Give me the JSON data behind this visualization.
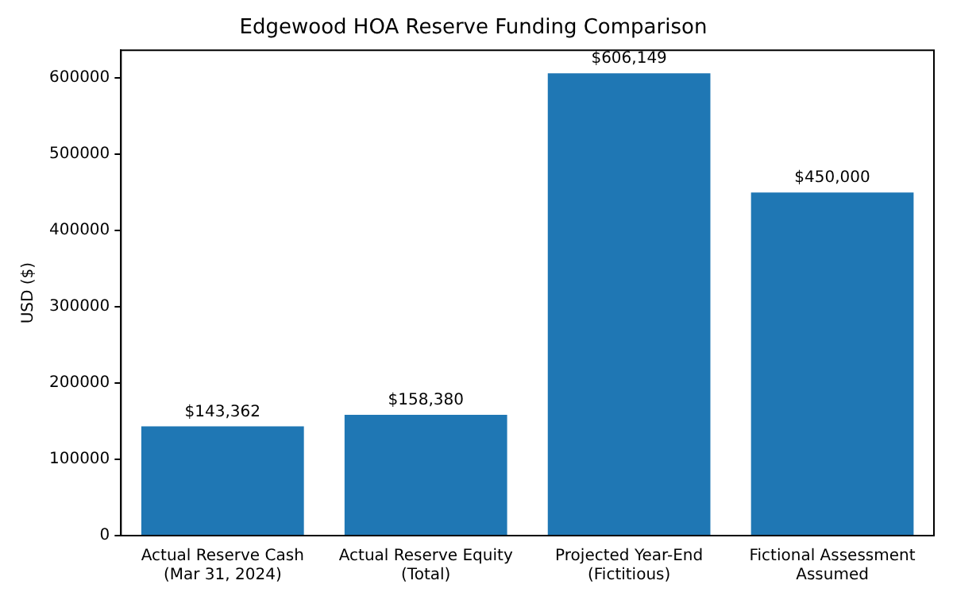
{
  "chart_data": {
    "type": "bar",
    "title": "Edgewood HOA Reserve Funding Comparison",
    "ylabel": "USD ($)",
    "categories": [
      "Actual Reserve Cash\n(Mar 31, 2024)",
      "Actual Reserve Equity\n(Total)",
      "Projected Year-End\n(Fictitious)",
      "Fictional Assessment\nAssumed"
    ],
    "values": [
      143362,
      158380,
      606149,
      450000
    ],
    "value_labels": [
      "$143,362",
      "$158,380",
      "$606,149",
      "$450,000"
    ],
    "color": "#1f77b4",
    "ylim": [
      0,
      636456
    ],
    "yticks": [
      0,
      100000,
      200000,
      300000,
      400000,
      500000,
      600000
    ],
    "grid": false,
    "legend": false
  }
}
